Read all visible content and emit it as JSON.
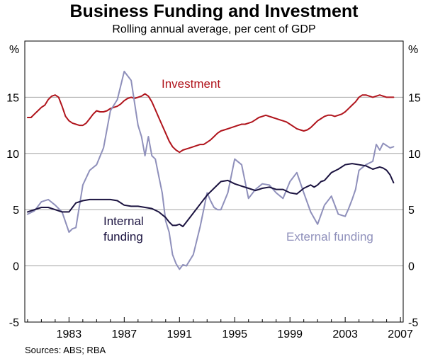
{
  "title": "Business Funding and Investment",
  "subtitle": "Rolling annual average, per cent of GDP",
  "source": "Sources: ABS; RBA",
  "colors": {
    "investment": "#b0141c",
    "internal": "#1b1340",
    "external": "#8f90bb",
    "grid": "#a6a6a6",
    "frame": "#000000"
  },
  "chart_data": {
    "type": "line",
    "title": "Business Funding and Investment",
    "subtitle": "Rolling annual average, per cent of GDP",
    "ylabel_left": "%",
    "ylabel_right": "%",
    "ylim": [
      -5,
      20
    ],
    "yticks": [
      -5,
      0,
      5,
      10,
      15
    ],
    "xlim": [
      1979.8,
      2007.2
    ],
    "xticks": [
      1983,
      1987,
      1991,
      1995,
      1999,
      2003,
      2007
    ],
    "xtick_labels": [
      "1983",
      "1987",
      "1991",
      "1995",
      "1999",
      "2003",
      "2007"
    ],
    "grid": true,
    "series": [
      {
        "name": "Investment",
        "label_lines": [
          "Investment"
        ],
        "x": [
          1980.0,
          1980.25,
          1980.5,
          1980.75,
          1981.0,
          1981.25,
          1981.5,
          1981.75,
          1982.0,
          1982.25,
          1982.5,
          1982.75,
          1983.0,
          1983.25,
          1983.5,
          1983.75,
          1984.0,
          1984.25,
          1984.5,
          1984.75,
          1985.0,
          1985.25,
          1985.5,
          1985.75,
          1986.0,
          1986.25,
          1986.5,
          1986.75,
          1987.0,
          1987.25,
          1987.5,
          1987.75,
          1988.0,
          1988.25,
          1988.5,
          1988.75,
          1989.0,
          1989.25,
          1989.5,
          1989.75,
          1990.0,
          1990.25,
          1990.5,
          1990.75,
          1991.0,
          1991.25,
          1991.5,
          1991.75,
          1992.0,
          1992.25,
          1992.5,
          1992.75,
          1993.0,
          1993.25,
          1993.5,
          1993.75,
          1994.0,
          1994.25,
          1994.5,
          1994.75,
          1995.0,
          1995.25,
          1995.5,
          1995.75,
          1996.0,
          1996.25,
          1996.5,
          1996.75,
          1997.0,
          1997.25,
          1997.5,
          1997.75,
          1998.0,
          1998.25,
          1998.5,
          1998.75,
          1999.0,
          1999.25,
          1999.5,
          1999.75,
          2000.0,
          2000.25,
          2000.5,
          2000.75,
          2001.0,
          2001.25,
          2001.5,
          2001.75,
          2002.0,
          2002.25,
          2002.5,
          2002.75,
          2003.0,
          2003.25,
          2003.5,
          2003.75,
          2004.0,
          2004.25,
          2004.5,
          2004.75,
          2005.0,
          2005.25,
          2005.5,
          2005.75,
          2006.0,
          2006.25,
          2006.5
        ],
        "values": [
          13.2,
          13.2,
          13.5,
          13.8,
          14.1,
          14.3,
          14.8,
          15.1,
          15.2,
          15.0,
          14.2,
          13.3,
          12.9,
          12.7,
          12.6,
          12.5,
          12.5,
          12.7,
          13.1,
          13.5,
          13.8,
          13.7,
          13.7,
          13.8,
          14.0,
          14.1,
          14.2,
          14.4,
          14.7,
          14.9,
          15.0,
          14.9,
          15.0,
          15.1,
          15.3,
          15.1,
          14.6,
          13.9,
          13.2,
          12.5,
          11.8,
          11.1,
          10.6,
          10.3,
          10.1,
          10.3,
          10.4,
          10.5,
          10.6,
          10.7,
          10.8,
          10.8,
          11.0,
          11.2,
          11.5,
          11.8,
          12.0,
          12.1,
          12.2,
          12.3,
          12.4,
          12.5,
          12.6,
          12.6,
          12.7,
          12.8,
          13.0,
          13.2,
          13.3,
          13.4,
          13.3,
          13.2,
          13.1,
          13.0,
          12.9,
          12.8,
          12.6,
          12.4,
          12.2,
          12.1,
          12.0,
          12.1,
          12.3,
          12.6,
          12.9,
          13.1,
          13.3,
          13.4,
          13.4,
          13.3,
          13.4,
          13.5,
          13.7,
          14.0,
          14.3,
          14.6,
          15.0,
          15.2,
          15.2,
          15.1,
          15.0,
          15.1,
          15.2,
          15.1,
          15.0,
          15.0,
          15.0
        ]
      },
      {
        "name": "Internal funding",
        "label_lines": [
          "Internal",
          "funding"
        ],
        "x": [
          1980.0,
          1980.5,
          1981.0,
          1981.5,
          1982.0,
          1982.5,
          1983.0,
          1983.5,
          1984.0,
          1984.5,
          1985.0,
          1985.5,
          1986.0,
          1986.5,
          1987.0,
          1987.5,
          1988.0,
          1988.5,
          1989.0,
          1989.5,
          1990.0,
          1990.25,
          1990.5,
          1990.75,
          1991.0,
          1991.25,
          1991.5,
          1992.0,
          1992.5,
          1993.0,
          1993.5,
          1994.0,
          1994.5,
          1995.0,
          1995.5,
          1996.0,
          1996.5,
          1997.0,
          1997.5,
          1998.0,
          1998.5,
          1999.0,
          1999.5,
          2000.0,
          2000.5,
          2000.75,
          2001.0,
          2001.25,
          2001.5,
          2002.0,
          2002.5,
          2003.0,
          2003.5,
          2004.0,
          2004.5,
          2005.0,
          2005.5,
          2005.75,
          2006.0,
          2006.25,
          2006.5
        ],
        "values": [
          4.8,
          5.0,
          5.2,
          5.2,
          5.0,
          4.8,
          4.8,
          5.6,
          5.8,
          5.9,
          5.9,
          5.9,
          5.9,
          5.8,
          5.4,
          5.3,
          5.3,
          5.2,
          5.1,
          4.8,
          4.3,
          3.9,
          3.6,
          3.6,
          3.7,
          3.5,
          3.9,
          4.7,
          5.5,
          6.3,
          6.9,
          7.5,
          7.6,
          7.3,
          7.1,
          6.9,
          6.7,
          6.9,
          7.0,
          6.8,
          6.8,
          6.5,
          6.4,
          6.9,
          7.2,
          7.0,
          7.2,
          7.5,
          7.6,
          8.3,
          8.6,
          9.0,
          9.1,
          9.0,
          8.9,
          8.6,
          8.8,
          8.7,
          8.5,
          8.1,
          7.4
        ]
      },
      {
        "name": "External funding",
        "label_lines": [
          "External funding"
        ],
        "x": [
          1980.0,
          1980.5,
          1981.0,
          1981.5,
          1982.0,
          1982.5,
          1983.0,
          1983.25,
          1983.5,
          1984.0,
          1984.5,
          1985.0,
          1985.5,
          1986.0,
          1986.5,
          1987.0,
          1987.5,
          1987.75,
          1988.0,
          1988.25,
          1988.5,
          1988.75,
          1989.0,
          1989.25,
          1989.5,
          1989.75,
          1990.0,
          1990.25,
          1990.5,
          1990.75,
          1991.0,
          1991.25,
          1991.5,
          1992.0,
          1992.5,
          1993.0,
          1993.25,
          1993.5,
          1993.75,
          1994.0,
          1994.5,
          1995.0,
          1995.5,
          1996.0,
          1996.5,
          1997.0,
          1997.5,
          1998.0,
          1998.5,
          1999.0,
          1999.5,
          2000.0,
          2000.5,
          2001.0,
          2001.5,
          2002.0,
          2002.5,
          2003.0,
          2003.25,
          2003.5,
          2003.75,
          2004.0,
          2004.5,
          2005.0,
          2005.25,
          2005.5,
          2005.75,
          2006.0,
          2006.25,
          2006.5
        ],
        "values": [
          4.6,
          4.9,
          5.7,
          5.9,
          5.4,
          4.8,
          3.0,
          3.3,
          3.4,
          7.2,
          8.5,
          9.0,
          10.5,
          13.8,
          14.8,
          17.3,
          16.5,
          14.5,
          12.5,
          11.5,
          9.8,
          11.5,
          9.8,
          9.5,
          8.0,
          6.5,
          4.0,
          3.0,
          1.0,
          0.2,
          -0.3,
          0.1,
          0.0,
          1.0,
          3.5,
          6.5,
          5.8,
          5.2,
          5.0,
          5.0,
          6.5,
          9.5,
          9.0,
          6.0,
          6.8,
          7.3,
          7.2,
          6.5,
          6.0,
          7.5,
          8.3,
          6.5,
          4.8,
          3.7,
          5.4,
          6.2,
          4.6,
          4.4,
          5.1,
          5.9,
          6.8,
          8.5,
          9.0,
          9.3,
          10.8,
          10.3,
          10.9,
          10.7,
          10.5,
          10.6
        ]
      }
    ]
  }
}
